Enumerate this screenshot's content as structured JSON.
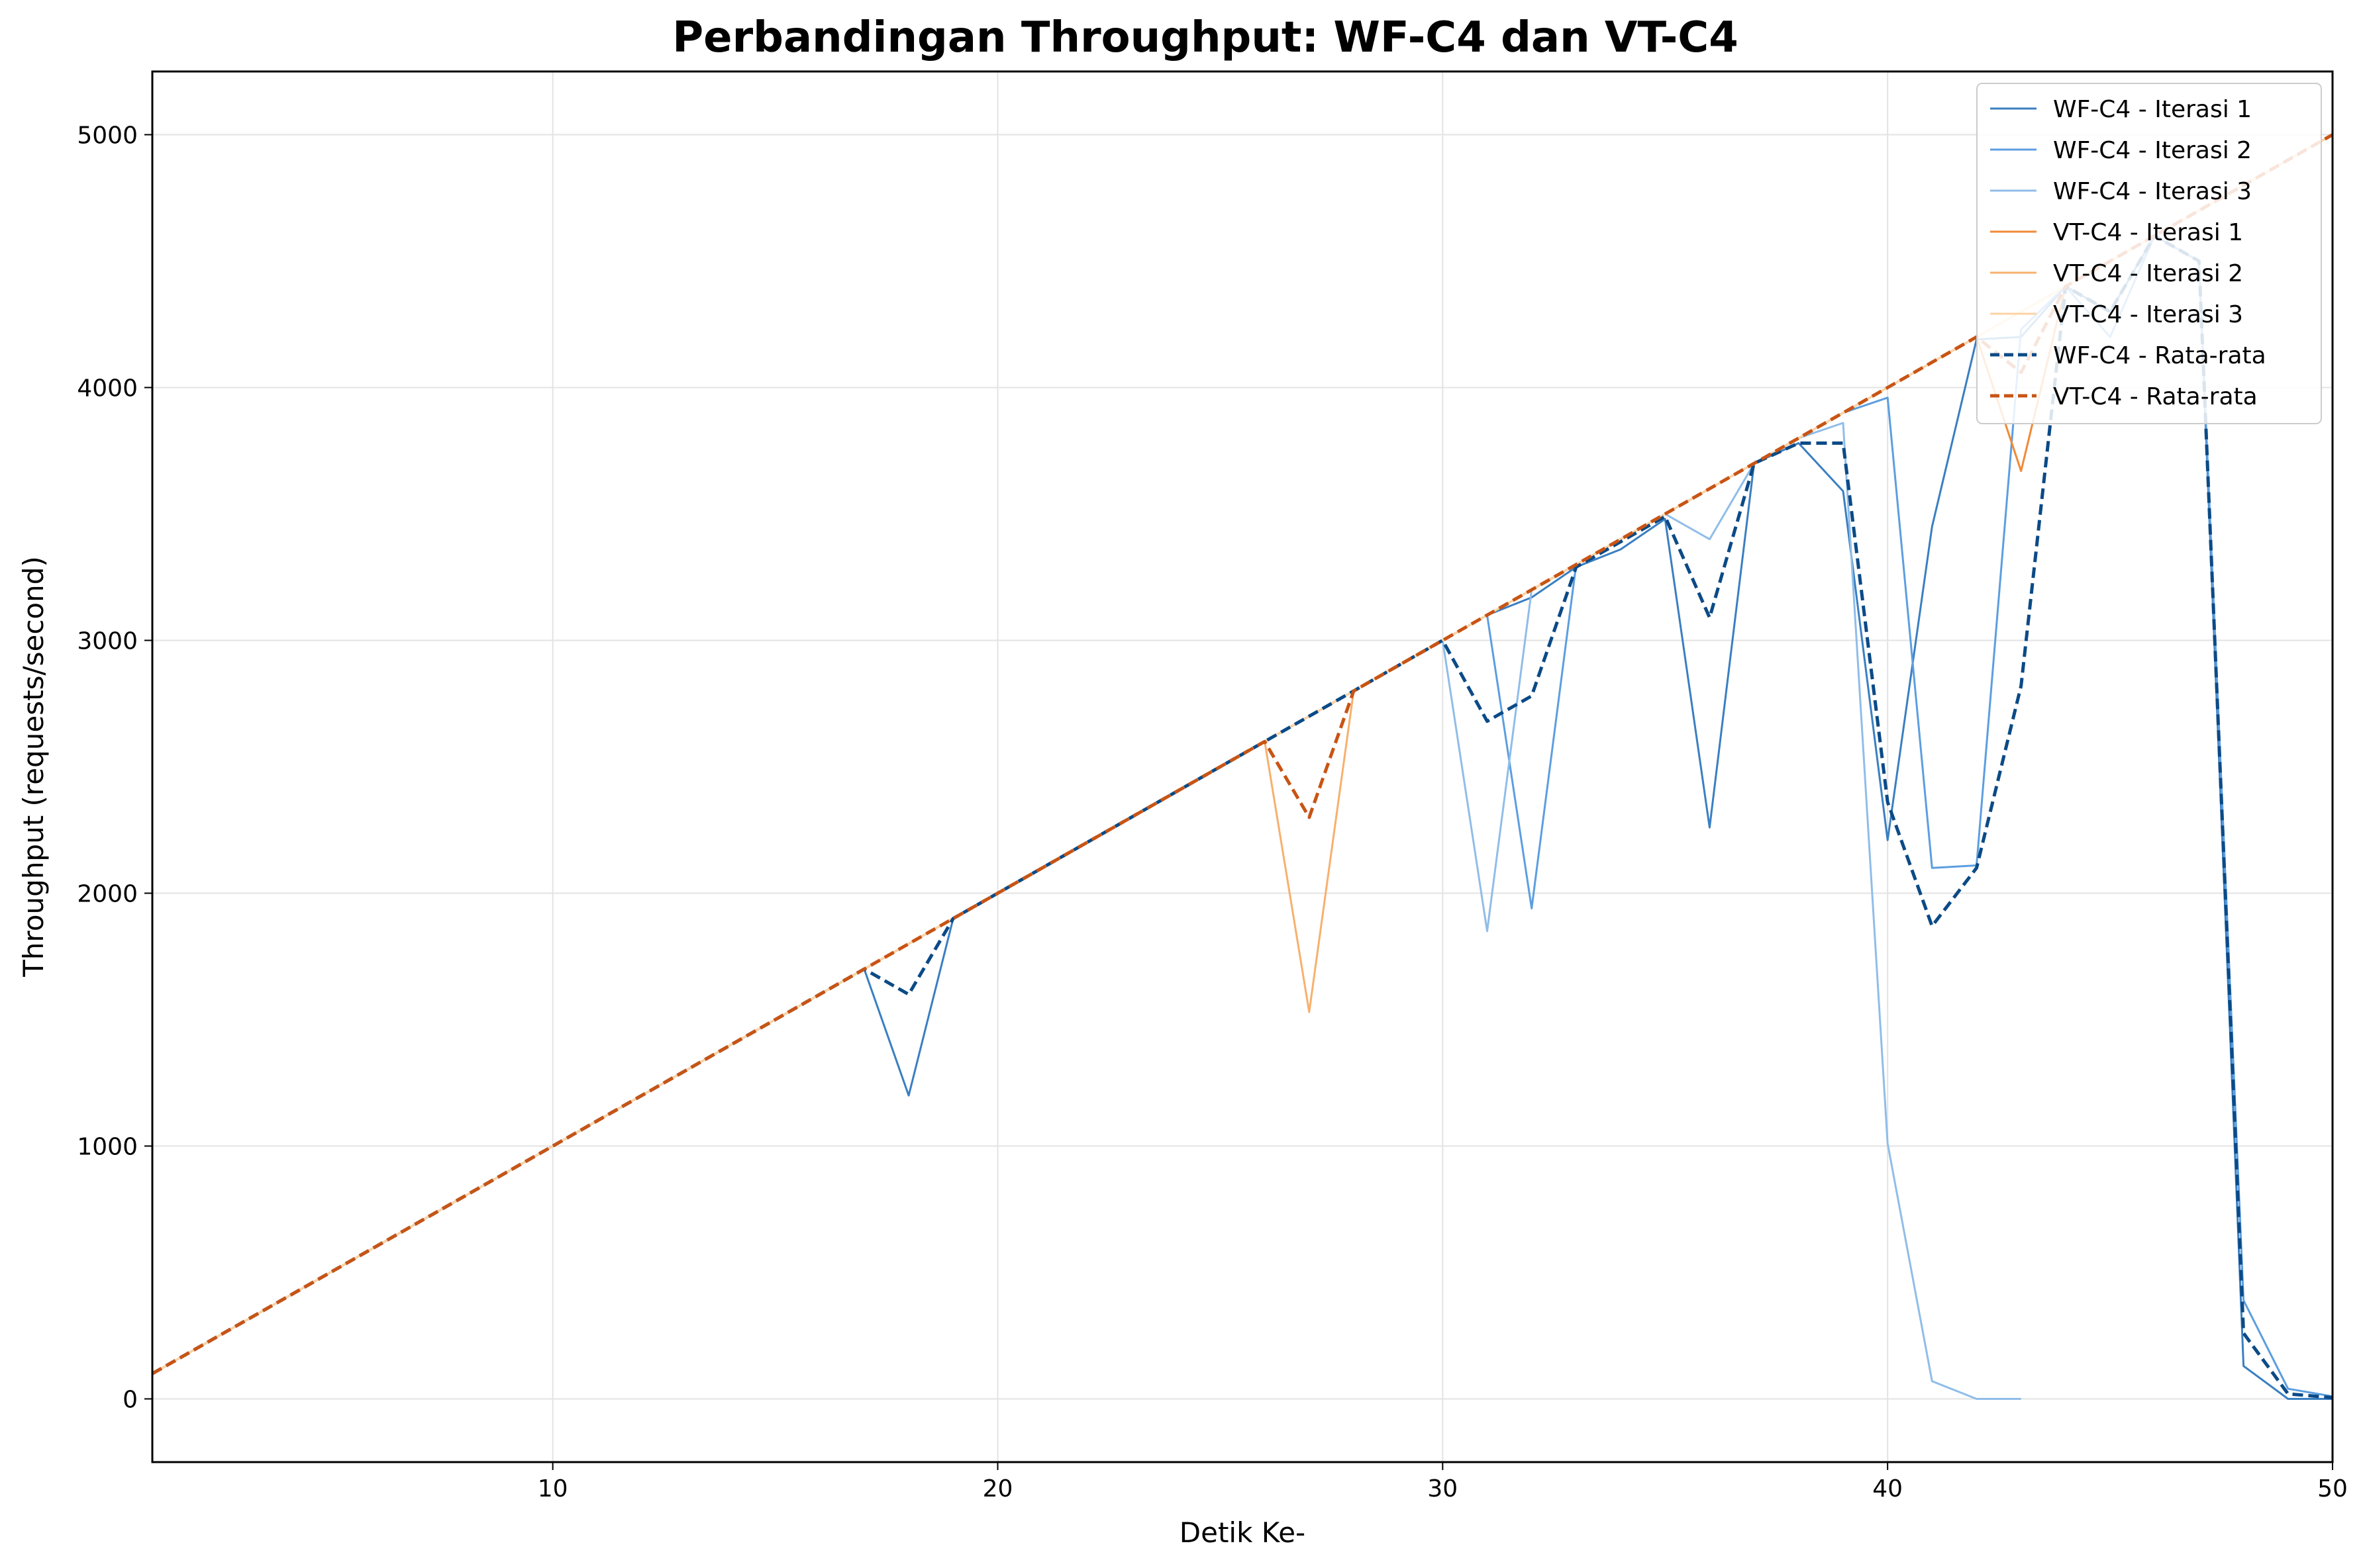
{
  "chart_data": {
    "type": "line",
    "title": "Perbandingan Throughput: WF-C4 dan VT-C4",
    "xlabel": "Detik Ke-",
    "ylabel": "Throughput (requests/second)",
    "xlim": [
      1,
      50
    ],
    "ylim": [
      -250,
      5250
    ],
    "xticks": [
      10,
      20,
      30,
      40,
      50
    ],
    "yticks": [
      0,
      1000,
      2000,
      3000,
      4000,
      5000
    ],
    "grid": true,
    "legend_position": "top-right",
    "series": [
      {
        "name": "WF-C4 - Iterasi 1",
        "color": "#3a7fc1",
        "dash": "solid",
        "width": 3,
        "x": [
          1,
          2,
          3,
          4,
          5,
          6,
          7,
          8,
          9,
          10,
          11,
          12,
          13,
          14,
          15,
          16,
          17,
          18,
          19,
          20,
          21,
          22,
          23,
          24,
          25,
          26,
          27,
          28,
          29,
          30,
          31,
          32,
          33,
          34,
          35,
          36,
          37,
          38,
          39,
          40,
          41,
          42,
          43,
          44,
          45,
          46,
          47,
          48,
          49,
          50
        ],
        "y": [
          100,
          200,
          300,
          400,
          500,
          600,
          700,
          800,
          900,
          1000,
          1100,
          1200,
          1300,
          1400,
          1500,
          1600,
          1700,
          1200,
          1900,
          2000,
          2100,
          2200,
          2300,
          2400,
          2500,
          2600,
          2700,
          2800,
          2900,
          3000,
          3100,
          3170,
          3290,
          3360,
          3480,
          2260,
          3700,
          3780,
          3590,
          2210,
          3450,
          4190,
          4200,
          4400,
          4300,
          4600,
          4500,
          130,
          0,
          0
        ]
      },
      {
        "name": "WF-C4 - Iterasi 2",
        "color": "#5c9ee0",
        "dash": "solid",
        "width": 3,
        "x": [
          1,
          2,
          3,
          4,
          5,
          6,
          7,
          8,
          9,
          10,
          11,
          12,
          13,
          14,
          15,
          16,
          17,
          18,
          19,
          20,
          21,
          22,
          23,
          24,
          25,
          26,
          27,
          28,
          29,
          30,
          31,
          32,
          33,
          34,
          35,
          36,
          37,
          38,
          39,
          40,
          41,
          42,
          43,
          44,
          45,
          46,
          47,
          48,
          49,
          50
        ],
        "y": [
          100,
          200,
          300,
          400,
          500,
          600,
          700,
          800,
          900,
          1000,
          1100,
          1200,
          1300,
          1400,
          1500,
          1600,
          1700,
          1800,
          1900,
          2000,
          2100,
          2200,
          2300,
          2400,
          2500,
          2600,
          2700,
          2800,
          2900,
          3000,
          3100,
          1940,
          3300,
          3400,
          3500,
          3600,
          3700,
          3800,
          3900,
          3960,
          2100,
          2110,
          4230,
          4400,
          4200,
          4600,
          4500,
          390,
          40,
          10
        ]
      },
      {
        "name": "WF-C4 - Iterasi 3",
        "color": "#90bde9",
        "dash": "solid",
        "width": 3,
        "x": [
          1,
          2,
          3,
          4,
          5,
          6,
          7,
          8,
          9,
          10,
          11,
          12,
          13,
          14,
          15,
          16,
          17,
          18,
          19,
          20,
          21,
          22,
          23,
          24,
          25,
          26,
          27,
          28,
          29,
          30,
          31,
          32,
          33,
          34,
          35,
          36,
          37,
          38,
          39,
          40,
          41,
          42,
          43
        ],
        "y": [
          100,
          200,
          300,
          400,
          500,
          600,
          700,
          800,
          900,
          1000,
          1100,
          1200,
          1300,
          1400,
          1500,
          1600,
          1700,
          1800,
          1900,
          2000,
          2100,
          2200,
          2300,
          2400,
          2500,
          2600,
          2700,
          2800,
          2900,
          3000,
          1850,
          3200,
          3300,
          3400,
          3500,
          3400,
          3700,
          3800,
          3860,
          1010,
          70,
          0,
          0
        ]
      },
      {
        "name": "VT-C4 - Iterasi 1",
        "color": "#f08a37",
        "dash": "solid",
        "width": 3,
        "x": [
          1,
          2,
          3,
          4,
          5,
          6,
          7,
          8,
          9,
          10,
          11,
          12,
          13,
          14,
          15,
          16,
          17,
          18,
          19,
          20,
          21,
          22,
          23,
          24,
          25,
          26,
          27,
          28,
          29,
          30,
          31,
          32,
          33,
          34,
          35,
          36,
          37,
          38,
          39,
          40,
          41,
          42,
          43,
          44,
          45,
          46,
          47,
          48,
          49,
          50
        ],
        "y": [
          100,
          200,
          300,
          400,
          500,
          600,
          700,
          800,
          900,
          1000,
          1100,
          1200,
          1300,
          1400,
          1500,
          1600,
          1700,
          1800,
          1900,
          2000,
          2100,
          2200,
          2300,
          2400,
          2500,
          2600,
          2700,
          2800,
          2900,
          3000,
          3100,
          3200,
          3300,
          3400,
          3500,
          3600,
          3700,
          3800,
          3900,
          4000,
          4100,
          4200,
          3670,
          4400,
          4500,
          4600,
          4700,
          4800,
          4900,
          5000
        ]
      },
      {
        "name": "VT-C4 - Iterasi 2",
        "color": "#f7b06e",
        "dash": "solid",
        "width": 3,
        "x": [
          1,
          2,
          3,
          4,
          5,
          6,
          7,
          8,
          9,
          10,
          11,
          12,
          13,
          14,
          15,
          16,
          17,
          18,
          19,
          20,
          21,
          22,
          23,
          24,
          25,
          26,
          27,
          28,
          29,
          30,
          31,
          32,
          33,
          34,
          35,
          36,
          37,
          38,
          39,
          40,
          41,
          42,
          43,
          44,
          45,
          46,
          47,
          48,
          49,
          50
        ],
        "y": [
          100,
          200,
          300,
          400,
          500,
          600,
          700,
          800,
          900,
          1000,
          1100,
          1200,
          1300,
          1400,
          1500,
          1600,
          1700,
          1800,
          1900,
          2000,
          2100,
          2200,
          2300,
          2400,
          2500,
          2600,
          1530,
          2800,
          2900,
          3000,
          3100,
          3200,
          3300,
          3400,
          3500,
          3600,
          3700,
          3800,
          3900,
          4000,
          4100,
          4200,
          4300,
          4400,
          4500,
          4600,
          4700,
          4800,
          4900,
          5000
        ]
      },
      {
        "name": "VT-C4 - Iterasi 3",
        "color": "#fcd3a4",
        "dash": "solid",
        "width": 3,
        "x": [
          1,
          2,
          3,
          4,
          5,
          6,
          7,
          8,
          9,
          10,
          11,
          12,
          13,
          14,
          15,
          16,
          17,
          18,
          19,
          20,
          21,
          22,
          23,
          24,
          25,
          26,
          27,
          28,
          29,
          30,
          31,
          32,
          33,
          34,
          35,
          36,
          37,
          38,
          39,
          40,
          41,
          42,
          43,
          44,
          45,
          46,
          47,
          48,
          49,
          50
        ],
        "y": [
          100,
          200,
          300,
          400,
          500,
          600,
          700,
          800,
          900,
          1000,
          1100,
          1200,
          1300,
          1400,
          1500,
          1600,
          1700,
          1800,
          1900,
          2000,
          2100,
          2200,
          2300,
          2400,
          2500,
          2600,
          2700,
          2800,
          2900,
          3000,
          3100,
          3200,
          3300,
          3400,
          3500,
          3600,
          3700,
          3800,
          3900,
          4000,
          4100,
          4200,
          4300,
          4400,
          4500,
          4600,
          4700,
          4800,
          4900,
          5000
        ]
      },
      {
        "name": "WF-C4 - Rata-rata",
        "color": "#0b4a86",
        "dash": "dashed",
        "width": 5,
        "x": [
          1,
          2,
          3,
          4,
          5,
          6,
          7,
          8,
          9,
          10,
          11,
          12,
          13,
          14,
          15,
          16,
          17,
          18,
          19,
          20,
          21,
          22,
          23,
          24,
          25,
          26,
          27,
          28,
          29,
          30,
          31,
          32,
          33,
          34,
          35,
          36,
          37,
          38,
          39,
          40,
          41,
          42,
          43,
          44,
          45,
          46,
          47,
          48,
          49,
          50
        ],
        "y": [
          100,
          200,
          300,
          400,
          500,
          600,
          700,
          800,
          900,
          1000,
          1100,
          1200,
          1300,
          1400,
          1500,
          1600,
          1700,
          1600,
          1900,
          2000,
          2100,
          2200,
          2300,
          2400,
          2500,
          2600,
          2700,
          2800,
          2900,
          3000,
          2680,
          2780,
          3290,
          3390,
          3490,
          3090,
          3700,
          3780,
          3780,
          2360,
          1870,
          2100,
          2820,
          4400,
          4300,
          4600,
          4500,
          260,
          20,
          5
        ]
      },
      {
        "name": "VT-C4 - Rata-rata",
        "color": "#c85414",
        "dash": "dashed",
        "width": 5,
        "x": [
          1,
          2,
          3,
          4,
          5,
          6,
          7,
          8,
          9,
          10,
          11,
          12,
          13,
          14,
          15,
          16,
          17,
          18,
          19,
          20,
          21,
          22,
          23,
          24,
          25,
          26,
          27,
          28,
          29,
          30,
          31,
          32,
          33,
          34,
          35,
          36,
          37,
          38,
          39,
          40,
          41,
          42,
          43,
          44,
          45,
          46,
          47,
          48,
          49,
          50
        ],
        "y": [
          100,
          200,
          300,
          400,
          500,
          600,
          700,
          800,
          900,
          1000,
          1100,
          1200,
          1300,
          1400,
          1500,
          1600,
          1700,
          1800,
          1900,
          2000,
          2100,
          2200,
          2300,
          2400,
          2500,
          2600,
          2300,
          2800,
          2900,
          3000,
          3100,
          3200,
          3300,
          3400,
          3500,
          3600,
          3700,
          3800,
          3900,
          4000,
          4100,
          4200,
          4060,
          4400,
          4500,
          4600,
          4700,
          4800,
          4900,
          5000
        ]
      }
    ]
  }
}
